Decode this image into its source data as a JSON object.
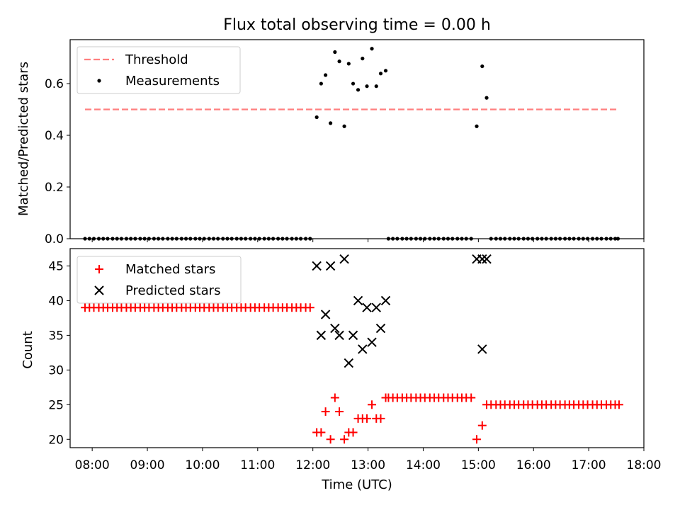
{
  "title": "Flux total observing time = 0.00 h",
  "xlabel": "Time (UTC)",
  "x_ticks": [
    "08:00",
    "09:00",
    "10:00",
    "11:00",
    "12:00",
    "13:00",
    "14:00",
    "15:00",
    "16:00",
    "17:00",
    "18:00"
  ],
  "colors": {
    "threshold": "#ff7f7f",
    "measurements": "#000000",
    "matched": "#ff0000",
    "predicted": "#000000"
  },
  "chart_data": [
    {
      "type": "scatter",
      "ylabel": "Matched/Predicted stars",
      "y_ticks": [
        "0.0",
        "0.2",
        "0.4",
        "0.6"
      ],
      "x_unit": "hours UTC",
      "xlim": [
        7.6,
        18.0
      ],
      "ylim": [
        0.0,
        0.77
      ],
      "legend_position": "upper-left",
      "threshold": {
        "name": "Threshold",
        "y": 0.5,
        "x_start": 7.87,
        "x_end": 17.53,
        "style": "dashed"
      },
      "series": [
        {
          "name": "Measurements",
          "marker": "dot",
          "points": [
            [
              7.87,
              0
            ],
            [
              7.95,
              0
            ],
            [
              8.03,
              0
            ],
            [
              8.12,
              0
            ],
            [
              8.2,
              0
            ],
            [
              8.28,
              0
            ],
            [
              8.37,
              0
            ],
            [
              8.45,
              0
            ],
            [
              8.53,
              0
            ],
            [
              8.62,
              0
            ],
            [
              8.7,
              0
            ],
            [
              8.78,
              0
            ],
            [
              8.87,
              0
            ],
            [
              8.95,
              0
            ],
            [
              9.03,
              0
            ],
            [
              9.12,
              0
            ],
            [
              9.2,
              0
            ],
            [
              9.28,
              0
            ],
            [
              9.37,
              0
            ],
            [
              9.45,
              0
            ],
            [
              9.53,
              0
            ],
            [
              9.62,
              0
            ],
            [
              9.7,
              0
            ],
            [
              9.78,
              0
            ],
            [
              9.87,
              0
            ],
            [
              9.95,
              0
            ],
            [
              10.03,
              0
            ],
            [
              10.12,
              0
            ],
            [
              10.2,
              0
            ],
            [
              10.28,
              0
            ],
            [
              10.37,
              0
            ],
            [
              10.45,
              0
            ],
            [
              10.53,
              0
            ],
            [
              10.62,
              0
            ],
            [
              10.7,
              0
            ],
            [
              10.78,
              0
            ],
            [
              10.87,
              0
            ],
            [
              10.95,
              0
            ],
            [
              11.03,
              0
            ],
            [
              11.12,
              0
            ],
            [
              11.2,
              0
            ],
            [
              11.28,
              0
            ],
            [
              11.37,
              0
            ],
            [
              11.45,
              0
            ],
            [
              11.53,
              0
            ],
            [
              11.62,
              0
            ],
            [
              11.7,
              0
            ],
            [
              11.78,
              0
            ],
            [
              11.87,
              0
            ],
            [
              11.95,
              0
            ],
            [
              12.07,
              0.47
            ],
            [
              12.15,
              0.6
            ],
            [
              12.23,
              0.633
            ],
            [
              12.32,
              0.447
            ],
            [
              12.4,
              0.722
            ],
            [
              12.48,
              0.686
            ],
            [
              12.57,
              0.435
            ],
            [
              12.65,
              0.677
            ],
            [
              12.73,
              0.6
            ],
            [
              12.82,
              0.576
            ],
            [
              12.9,
              0.697
            ],
            [
              12.98,
              0.59
            ],
            [
              13.07,
              0.735
            ],
            [
              13.15,
              0.59
            ],
            [
              13.23,
              0.639
            ],
            [
              13.32,
              0.65
            ],
            [
              13.37,
              0
            ],
            [
              13.45,
              0
            ],
            [
              13.53,
              0
            ],
            [
              13.62,
              0
            ],
            [
              13.7,
              0
            ],
            [
              13.78,
              0
            ],
            [
              13.87,
              0
            ],
            [
              13.95,
              0
            ],
            [
              14.03,
              0
            ],
            [
              14.12,
              0
            ],
            [
              14.2,
              0
            ],
            [
              14.28,
              0
            ],
            [
              14.37,
              0
            ],
            [
              14.45,
              0
            ],
            [
              14.53,
              0
            ],
            [
              14.62,
              0
            ],
            [
              14.7,
              0
            ],
            [
              14.78,
              0
            ],
            [
              14.87,
              0
            ],
            [
              14.97,
              0.435
            ],
            [
              15.07,
              0.667
            ],
            [
              15.15,
              0.545
            ],
            [
              15.23,
              0
            ],
            [
              15.32,
              0
            ],
            [
              15.4,
              0
            ],
            [
              15.48,
              0
            ],
            [
              15.57,
              0
            ],
            [
              15.65,
              0
            ],
            [
              15.73,
              0
            ],
            [
              15.82,
              0
            ],
            [
              15.9,
              0
            ],
            [
              15.98,
              0
            ],
            [
              16.07,
              0
            ],
            [
              16.15,
              0
            ],
            [
              16.23,
              0
            ],
            [
              16.32,
              0
            ],
            [
              16.4,
              0
            ],
            [
              16.48,
              0
            ],
            [
              16.57,
              0
            ],
            [
              16.65,
              0
            ],
            [
              16.73,
              0
            ],
            [
              16.82,
              0
            ],
            [
              16.9,
              0
            ],
            [
              16.98,
              0
            ],
            [
              17.07,
              0
            ],
            [
              17.15,
              0
            ],
            [
              17.23,
              0
            ],
            [
              17.32,
              0
            ],
            [
              17.4,
              0
            ],
            [
              17.48,
              0
            ],
            [
              17.53,
              0
            ]
          ]
        }
      ]
    },
    {
      "type": "scatter",
      "ylabel": "Count",
      "y_ticks": [
        "20",
        "25",
        "30",
        "35",
        "40",
        "45"
      ],
      "x_unit": "hours UTC",
      "xlim": [
        7.6,
        18.0
      ],
      "ylim": [
        18.8,
        47.5
      ],
      "legend_position": "upper-left",
      "series": [
        {
          "name": "Matched stars",
          "marker": "plus",
          "points": [
            [
              7.87,
              39
            ],
            [
              7.95,
              39
            ],
            [
              8.03,
              39
            ],
            [
              8.12,
              39
            ],
            [
              8.2,
              39
            ],
            [
              8.28,
              39
            ],
            [
              8.37,
              39
            ],
            [
              8.45,
              39
            ],
            [
              8.53,
              39
            ],
            [
              8.62,
              39
            ],
            [
              8.7,
              39
            ],
            [
              8.78,
              39
            ],
            [
              8.87,
              39
            ],
            [
              8.95,
              39
            ],
            [
              9.03,
              39
            ],
            [
              9.12,
              39
            ],
            [
              9.2,
              39
            ],
            [
              9.28,
              39
            ],
            [
              9.37,
              39
            ],
            [
              9.45,
              39
            ],
            [
              9.53,
              39
            ],
            [
              9.62,
              39
            ],
            [
              9.7,
              39
            ],
            [
              9.78,
              39
            ],
            [
              9.87,
              39
            ],
            [
              9.95,
              39
            ],
            [
              10.03,
              39
            ],
            [
              10.12,
              39
            ],
            [
              10.2,
              39
            ],
            [
              10.28,
              39
            ],
            [
              10.37,
              39
            ],
            [
              10.45,
              39
            ],
            [
              10.53,
              39
            ],
            [
              10.62,
              39
            ],
            [
              10.7,
              39
            ],
            [
              10.78,
              39
            ],
            [
              10.87,
              39
            ],
            [
              10.95,
              39
            ],
            [
              11.03,
              39
            ],
            [
              11.12,
              39
            ],
            [
              11.2,
              39
            ],
            [
              11.28,
              39
            ],
            [
              11.37,
              39
            ],
            [
              11.45,
              39
            ],
            [
              11.53,
              39
            ],
            [
              11.62,
              39
            ],
            [
              11.7,
              39
            ],
            [
              11.78,
              39
            ],
            [
              11.87,
              39
            ],
            [
              11.95,
              39
            ],
            [
              12.07,
              21
            ],
            [
              12.15,
              21
            ],
            [
              12.23,
              24
            ],
            [
              12.32,
              20
            ],
            [
              12.4,
              26
            ],
            [
              12.48,
              24
            ],
            [
              12.57,
              20
            ],
            [
              12.65,
              21
            ],
            [
              12.73,
              21
            ],
            [
              12.82,
              23
            ],
            [
              12.9,
              23
            ],
            [
              12.98,
              23
            ],
            [
              13.07,
              25
            ],
            [
              13.15,
              23
            ],
            [
              13.23,
              23
            ],
            [
              13.32,
              26
            ],
            [
              13.37,
              26
            ],
            [
              13.45,
              26
            ],
            [
              13.53,
              26
            ],
            [
              13.62,
              26
            ],
            [
              13.7,
              26
            ],
            [
              13.78,
              26
            ],
            [
              13.87,
              26
            ],
            [
              13.95,
              26
            ],
            [
              14.03,
              26
            ],
            [
              14.12,
              26
            ],
            [
              14.2,
              26
            ],
            [
              14.28,
              26
            ],
            [
              14.37,
              26
            ],
            [
              14.45,
              26
            ],
            [
              14.53,
              26
            ],
            [
              14.62,
              26
            ],
            [
              14.7,
              26
            ],
            [
              14.78,
              26
            ],
            [
              14.87,
              26
            ],
            [
              14.97,
              20
            ],
            [
              15.07,
              22
            ],
            [
              15.15,
              25
            ],
            [
              15.23,
              25
            ],
            [
              15.32,
              25
            ],
            [
              15.4,
              25
            ],
            [
              15.48,
              25
            ],
            [
              15.57,
              25
            ],
            [
              15.65,
              25
            ],
            [
              15.73,
              25
            ],
            [
              15.82,
              25
            ],
            [
              15.9,
              25
            ],
            [
              15.98,
              25
            ],
            [
              16.07,
              25
            ],
            [
              16.15,
              25
            ],
            [
              16.23,
              25
            ],
            [
              16.32,
              25
            ],
            [
              16.4,
              25
            ],
            [
              16.48,
              25
            ],
            [
              16.57,
              25
            ],
            [
              16.65,
              25
            ],
            [
              16.73,
              25
            ],
            [
              16.82,
              25
            ],
            [
              16.9,
              25
            ],
            [
              16.98,
              25
            ],
            [
              17.07,
              25
            ],
            [
              17.15,
              25
            ],
            [
              17.23,
              25
            ],
            [
              17.32,
              25
            ],
            [
              17.4,
              25
            ],
            [
              17.48,
              25
            ],
            [
              17.55,
              25
            ]
          ]
        },
        {
          "name": "Predicted stars",
          "marker": "x",
          "points": [
            [
              12.07,
              45
            ],
            [
              12.15,
              35
            ],
            [
              12.23,
              38
            ],
            [
              12.32,
              45
            ],
            [
              12.4,
              36
            ],
            [
              12.48,
              35
            ],
            [
              12.57,
              46
            ],
            [
              12.65,
              31
            ],
            [
              12.73,
              35
            ],
            [
              12.82,
              40
            ],
            [
              12.9,
              33
            ],
            [
              12.98,
              39
            ],
            [
              13.07,
              34
            ],
            [
              13.15,
              39
            ],
            [
              13.23,
              36
            ],
            [
              13.32,
              40
            ],
            [
              14.97,
              46
            ],
            [
              15.07,
              33
            ],
            [
              15.07,
              46
            ],
            [
              15.15,
              46
            ]
          ]
        }
      ]
    }
  ]
}
